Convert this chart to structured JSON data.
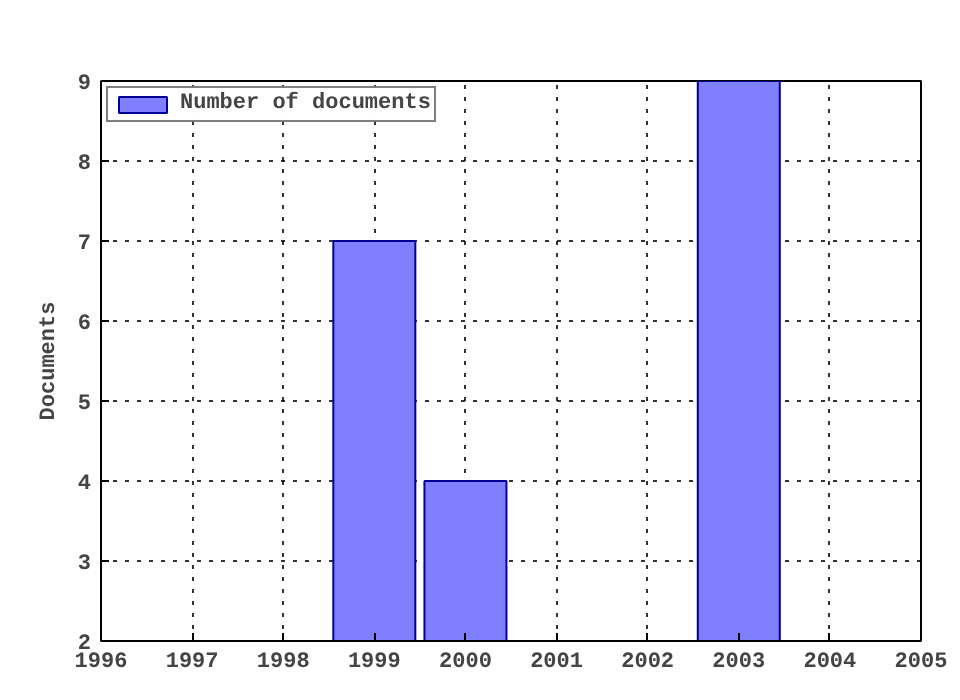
{
  "chart_data": {
    "type": "bar",
    "ylabel": "Documents",
    "x": [
      1999,
      2000,
      2003
    ],
    "series": [
      {
        "name": "Number of documents",
        "color": "#8080ff",
        "values": [
          7,
          4,
          9
        ]
      }
    ],
    "xlim": [
      1996,
      2005
    ],
    "xticks": [
      1996,
      1997,
      1998,
      1999,
      2000,
      2001,
      2002,
      2003,
      2004,
      2005
    ],
    "ylim": [
      2,
      9
    ],
    "yticks": [
      2,
      3,
      4,
      5,
      6,
      7,
      8,
      9
    ],
    "grid": true,
    "legend": "top left",
    "line_style": "dotted"
  }
}
